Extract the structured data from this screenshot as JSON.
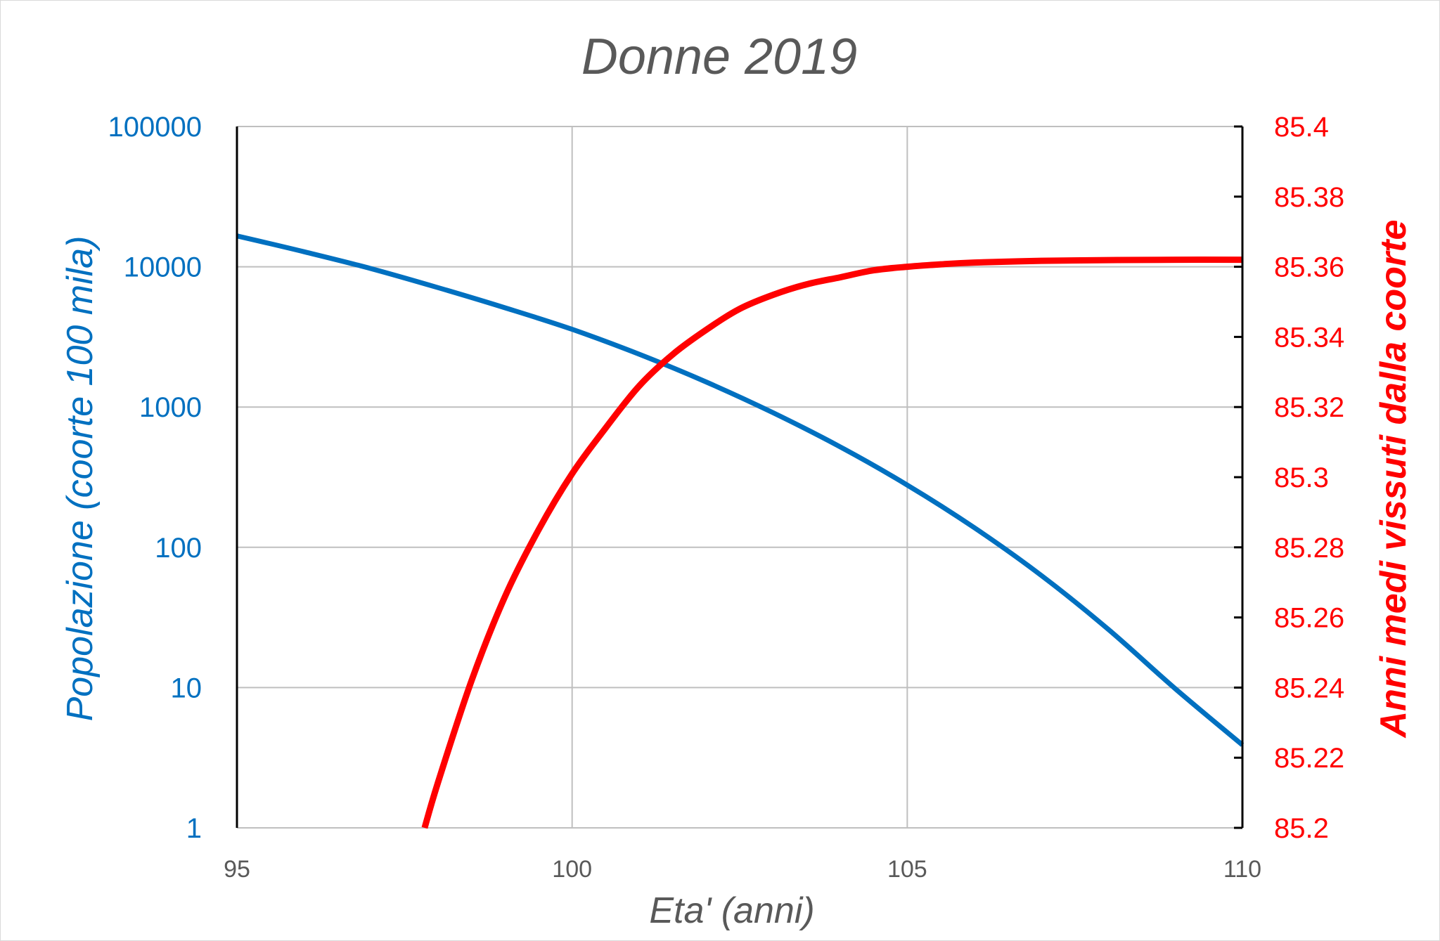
{
  "chart_data": {
    "type": "line",
    "title": "Donne 2019",
    "xlabel": "Eta' (anni)",
    "ylabel": "Popolazione (coorte 100 mila)",
    "y2label": "Anni medi vissuti dalla coorte",
    "xlim": [
      95,
      110
    ],
    "ylim": [
      1,
      100000
    ],
    "yscale": "log",
    "y2lim": [
      85.2,
      85.4
    ],
    "grid": true,
    "x_ticks": [
      "95",
      "100",
      "105",
      "110"
    ],
    "x_tick_values": [
      95,
      100,
      105,
      110
    ],
    "y_ticks": [
      "1",
      "10",
      "100",
      "1000",
      "10000",
      "100000"
    ],
    "y_tick_values": [
      1,
      10,
      100,
      1000,
      10000,
      100000
    ],
    "y2_ticks": [
      "85.2",
      "85.22",
      "85.24",
      "85.26",
      "85.28",
      "85.3",
      "85.32",
      "85.34",
      "85.36",
      "85.38",
      "85.4"
    ],
    "y2_tick_values": [
      85.2,
      85.22,
      85.24,
      85.26,
      85.28,
      85.3,
      85.32,
      85.34,
      85.36,
      85.38,
      85.4
    ],
    "series": [
      {
        "axis": "left",
        "color": "#0070c0",
        "x": [
          95,
          96,
          97,
          98,
          99,
          100,
          101,
          102,
          103,
          104,
          105,
          106,
          107,
          108,
          109,
          110
        ],
        "y": [
          16600,
          12800,
          9700,
          7100,
          5100,
          3580,
          2380,
          1510,
          910,
          520,
          278,
          138,
          63,
          26,
          9.8,
          3.9
        ]
      },
      {
        "axis": "right",
        "color": "#ff0000",
        "x": [
          97.8,
          98.0,
          98.5,
          99.0,
          99.5,
          100.0,
          100.5,
          101.0,
          101.5,
          102.0,
          102.5,
          103.0,
          103.5,
          104.0,
          104.5,
          105.0,
          105.5,
          106.0,
          107.0,
          108.0,
          109.0,
          110.0
        ],
        "y": [
          85.2,
          85.213,
          85.242,
          85.266,
          85.285,
          85.301,
          85.314,
          85.326,
          85.335,
          85.342,
          85.348,
          85.352,
          85.355,
          85.357,
          85.359,
          85.36,
          85.3607,
          85.3612,
          85.3617,
          85.3619,
          85.362,
          85.362
        ]
      }
    ]
  }
}
